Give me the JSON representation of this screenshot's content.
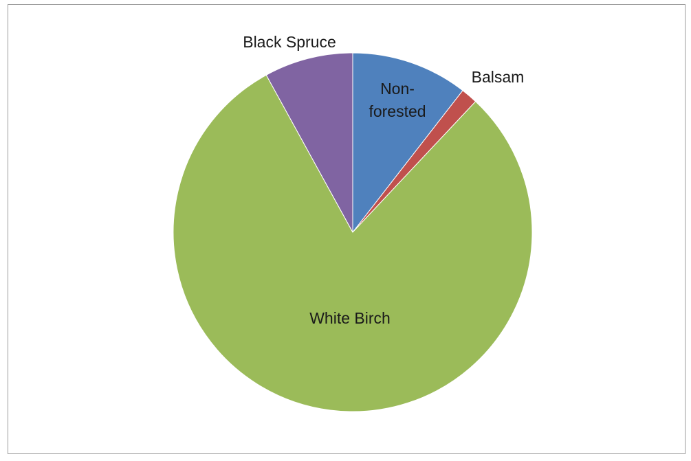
{
  "chart_data": {
    "type": "pie",
    "start_angle_deg": 0,
    "direction": "clockwise",
    "legend": "none",
    "slices": [
      {
        "label": "Non-forested",
        "label_lines": [
          "Non-",
          "forested"
        ],
        "value": 10.5,
        "color": "#4f81bd"
      },
      {
        "label": "Balsam",
        "label_lines": [
          "Balsam"
        ],
        "value": 1.5,
        "color": "#c0504d"
      },
      {
        "label": "White Birch",
        "label_lines": [
          "White Birch"
        ],
        "value": 80.0,
        "color": "#9bbb59"
      },
      {
        "label": "Black Spruce",
        "label_lines": [
          "Black Spruce"
        ],
        "value": 8.0,
        "color": "#8064a2"
      }
    ]
  }
}
